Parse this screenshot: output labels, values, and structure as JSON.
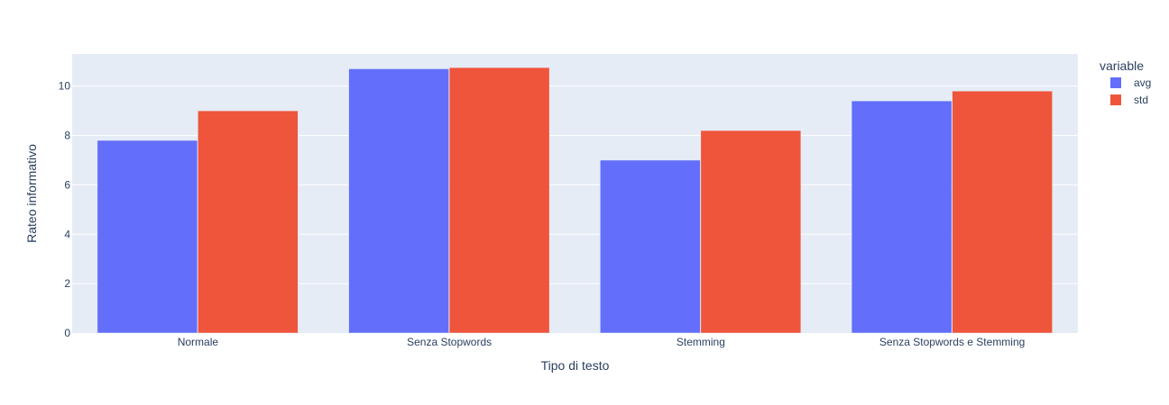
{
  "chart_data": {
    "type": "bar",
    "categories": [
      "Normale",
      "Senza Stopwords",
      "Stemming",
      "Senza Stopwords e Stemming"
    ],
    "series": [
      {
        "name": "avg",
        "values": [
          7.8,
          10.7,
          7.0,
          9.4
        ],
        "color": "#636efa"
      },
      {
        "name": "std",
        "values": [
          9.0,
          10.75,
          8.2,
          9.8
        ],
        "color": "#ef553b"
      }
    ],
    "title": "",
    "xlabel": "Tipo di testo",
    "ylabel": "Rateo informativo",
    "ylim": [
      0,
      11.3
    ],
    "yticks": [
      0,
      2,
      4,
      6,
      8,
      10
    ],
    "legend_title": "variable",
    "legend_position": "top-right",
    "grid": true,
    "plot_background": "#e5ecf6"
  }
}
